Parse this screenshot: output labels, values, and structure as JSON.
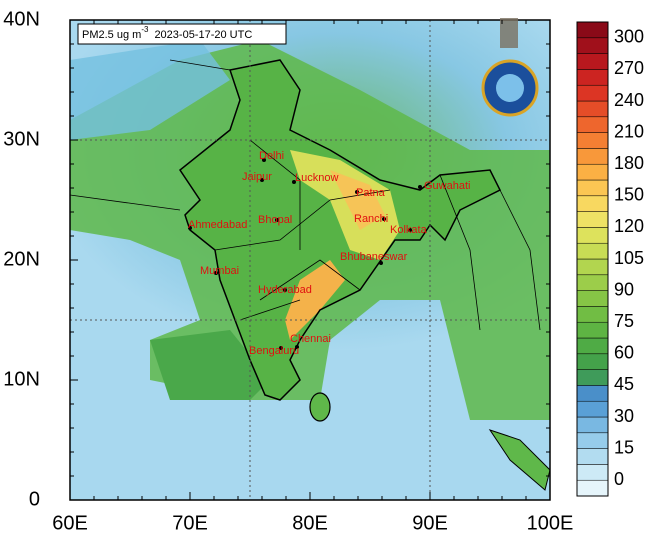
{
  "title": {
    "prefix": "PM2.5 ug m",
    "superscript": "-3",
    "suffix": "2023-05-17-20 UTC"
  },
  "axes": {
    "xlim": [
      60,
      100
    ],
    "ylim": [
      0,
      40
    ],
    "xticks": [
      {
        "value": 60,
        "label": "60E"
      },
      {
        "value": 70,
        "label": "70E"
      },
      {
        "value": 80,
        "label": "80E"
      },
      {
        "value": 90,
        "label": "90E"
      },
      {
        "value": 100,
        "label": "100E"
      }
    ],
    "yticks": [
      0,
      {
        "value": 10,
        "label": "10N"
      },
      {
        "value": 20,
        "label": "20N"
      },
      {
        "value": 30,
        "label": "30N"
      },
      {
        "value": 40,
        "label": "40N"
      }
    ]
  },
  "colorbar": {
    "ticks": [
      0,
      15,
      30,
      45,
      60,
      75,
      90,
      105,
      120,
      150,
      180,
      210,
      240,
      270,
      300
    ],
    "colors": [
      "#e6f5fb",
      "#cdeaf6",
      "#b2dcf0",
      "#96cceb",
      "#79b8e2",
      "#5aa0d6",
      "#4a8fc9",
      "#3f9b5a",
      "#44a24a",
      "#4fab45",
      "#5eb443",
      "#71bd44",
      "#86c546",
      "#9ccd4a",
      "#b2d54f",
      "#c8dc55",
      "#dde25c",
      "#eee265",
      "#f8d860",
      "#fbc653",
      "#fbb044",
      "#f8983a",
      "#f47f33",
      "#ee662d",
      "#e54d28",
      "#dc3524",
      "#cc2421",
      "#b8181e",
      "#a0101b",
      "#8a0a18"
    ]
  },
  "cities": [
    "Delhi",
    "Jaipur",
    "Lucknow",
    "Patna",
    "Guwahati",
    "Ahmedabad",
    "Bhopal",
    "Ranchi",
    "Kolkata",
    "Bhubaneswar",
    "Mumbai",
    "Hyderabad",
    "Chennai",
    "Bengaluru"
  ]
}
